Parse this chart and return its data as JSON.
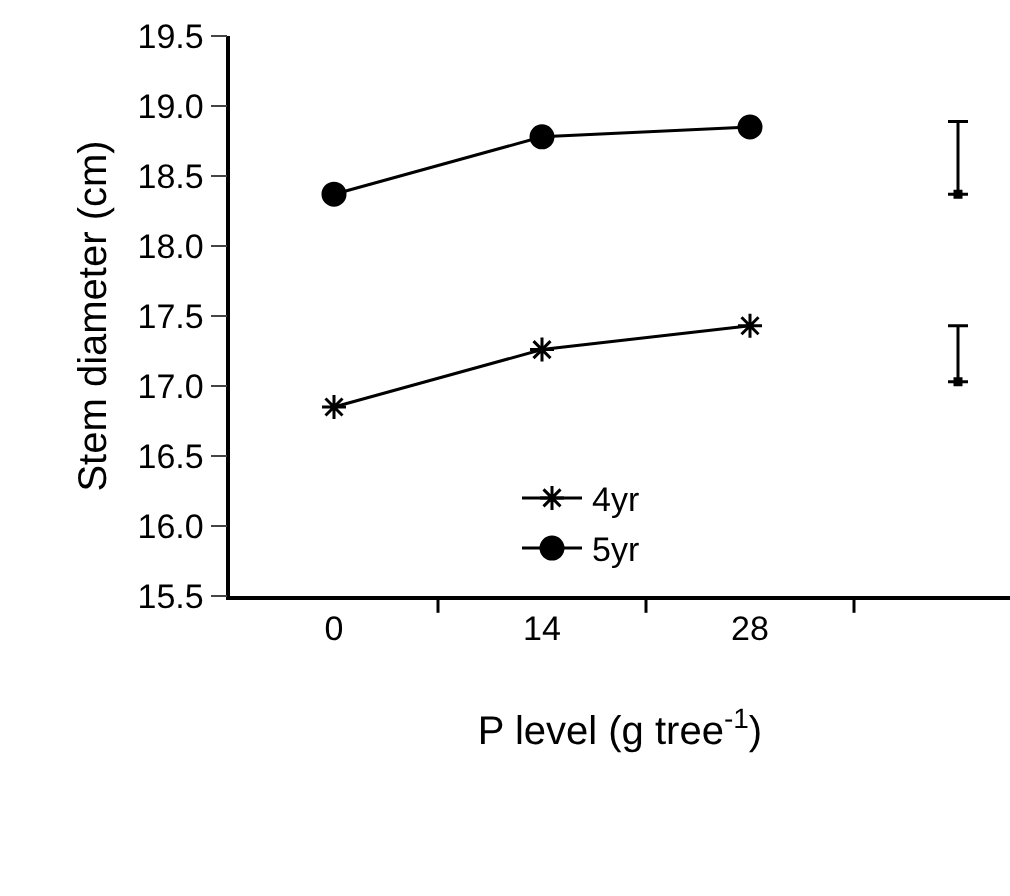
{
  "chart_data": {
    "type": "line",
    "xlabel": "P level (g tree$^{-1}$)",
    "ylabel": "Stem diameter (cm)",
    "categories": [
      "0",
      "14",
      "28",
      null
    ],
    "series": [
      {
        "name": "4yr",
        "color": "#000000",
        "marker": "cross",
        "values": [
          16.85,
          17.26,
          17.43,
          null
        ]
      },
      {
        "name": "5yr",
        "color": "#000000",
        "marker": "circle",
        "values": [
          18.37,
          18.78,
          18.85,
          null
        ]
      },
      {
        "type": "scatter",
        "color": "#000000",
        "marker": "square",
        "values": [
          null,
          null,
          null,
          18.37
        ],
        "errors": [
          null,
          null,
          null,
          [
            18.37,
            18.89
          ]
        ]
      },
      {
        "type": "scatter",
        "color": "#000000",
        "marker": "square",
        "values": [
          null,
          null,
          null,
          17.03
        ],
        "errors": [
          null,
          null,
          null,
          [
            17.03,
            17.43
          ]
        ]
      }
    ],
    "ylim": [
      15.5,
      19.5
    ],
    "yticks": [
      15.5,
      {
        "value": 16,
        "label": "16.0"
      },
      16.5,
      {
        "value": 17,
        "label": "17.0"
      },
      17.5,
      {
        "value": 18,
        "label": "18.0"
      },
      18.5,
      {
        "value": 19,
        "label": "19.0"
      },
      19.5
    ],
    "legend": "bottom",
    "line_style": "solid"
  }
}
